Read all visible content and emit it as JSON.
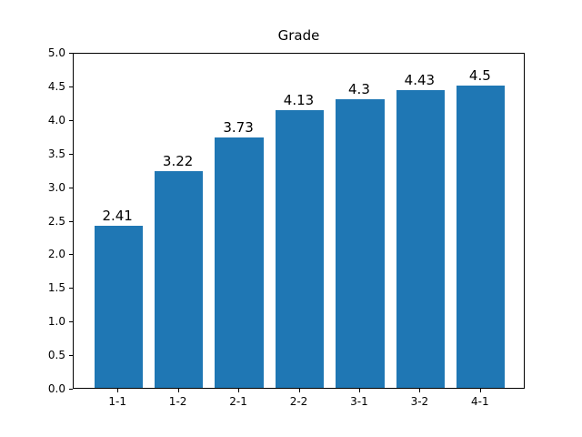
{
  "chart_data": {
    "type": "bar",
    "title": "Grade",
    "xlabel": "",
    "ylabel": "",
    "categories": [
      "1-1",
      "1-2",
      "2-1",
      "2-2",
      "3-1",
      "3-2",
      "4-1"
    ],
    "values": [
      2.41,
      3.22,
      3.73,
      4.13,
      4.3,
      4.43,
      4.5
    ],
    "bar_labels": [
      "2.41",
      "3.22",
      "3.73",
      "4.13",
      "4.3",
      "4.43",
      "4.5"
    ],
    "ylim": [
      0.0,
      5.0
    ],
    "ytick_labels": [
      "0.0",
      "0.5",
      "1.0",
      "1.5",
      "2.0",
      "2.5",
      "3.0",
      "3.5",
      "4.0",
      "4.5",
      "5.0"
    ],
    "ytick_values": [
      0.0,
      0.5,
      1.0,
      1.5,
      2.0,
      2.5,
      3.0,
      3.5,
      4.0,
      4.5,
      5.0
    ],
    "bar_color": "#1f77b4",
    "grid": "off",
    "legend": "none"
  }
}
